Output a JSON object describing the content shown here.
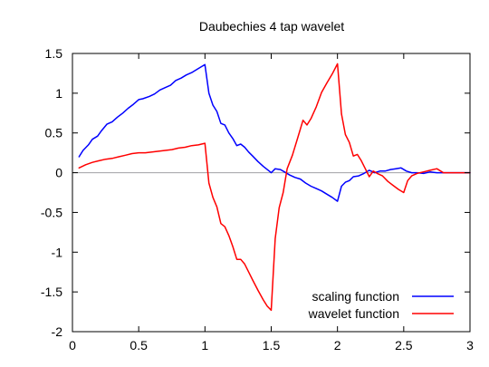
{
  "chart_data": {
    "type": "line",
    "title": "Daubechies 4 tap wavelet",
    "xlabel": "",
    "ylabel": "",
    "xlim": [
      0,
      3
    ],
    "ylim": [
      -2,
      1.5
    ],
    "xticks": [
      0,
      0.5,
      1,
      1.5,
      2,
      2.5,
      3
    ],
    "xtick_labels": [
      "0",
      "0.5",
      "1",
      "1.5",
      "2",
      "2.5",
      "3"
    ],
    "yticks": [
      -2,
      -1.5,
      -1,
      -0.5,
      0,
      0.5,
      1,
      1.5
    ],
    "ytick_labels": [
      "-2",
      "-1.5",
      "-1",
      "-0.5",
      "0",
      "0.5",
      "1",
      "1.5"
    ],
    "zero_line": true,
    "grid": false,
    "legend_position": "bottom-right",
    "series": [
      {
        "name": "scaling function",
        "color": "#0000ff",
        "points": [
          [
            0.05,
            0.2
          ],
          [
            0.08,
            0.28
          ],
          [
            0.12,
            0.35
          ],
          [
            0.15,
            0.42
          ],
          [
            0.19,
            0.46
          ],
          [
            0.22,
            0.53
          ],
          [
            0.26,
            0.61
          ],
          [
            0.3,
            0.64
          ],
          [
            0.34,
            0.7
          ],
          [
            0.38,
            0.75
          ],
          [
            0.42,
            0.81
          ],
          [
            0.46,
            0.86
          ],
          [
            0.5,
            0.92
          ],
          [
            0.53,
            0.93
          ],
          [
            0.58,
            0.96
          ],
          [
            0.62,
            0.99
          ],
          [
            0.66,
            1.04
          ],
          [
            0.7,
            1.07
          ],
          [
            0.74,
            1.1
          ],
          [
            0.78,
            1.16
          ],
          [
            0.82,
            1.19
          ],
          [
            0.86,
            1.23
          ],
          [
            0.9,
            1.26
          ],
          [
            0.94,
            1.3
          ],
          [
            0.98,
            1.34
          ],
          [
            1.0,
            1.36
          ],
          [
            1.03,
            1.0
          ],
          [
            1.06,
            0.85
          ],
          [
            1.09,
            0.77
          ],
          [
            1.12,
            0.62
          ],
          [
            1.15,
            0.6
          ],
          [
            1.18,
            0.5
          ],
          [
            1.21,
            0.43
          ],
          [
            1.24,
            0.34
          ],
          [
            1.27,
            0.36
          ],
          [
            1.3,
            0.32
          ],
          [
            1.33,
            0.26
          ],
          [
            1.36,
            0.21
          ],
          [
            1.4,
            0.14
          ],
          [
            1.44,
            0.08
          ],
          [
            1.47,
            0.04
          ],
          [
            1.5,
            0.0
          ],
          [
            1.53,
            0.05
          ],
          [
            1.57,
            0.04
          ],
          [
            1.6,
            0.01
          ],
          [
            1.64,
            -0.03
          ],
          [
            1.68,
            -0.06
          ],
          [
            1.72,
            -0.08
          ],
          [
            1.76,
            -0.13
          ],
          [
            1.8,
            -0.17
          ],
          [
            1.84,
            -0.2
          ],
          [
            1.88,
            -0.23
          ],
          [
            1.92,
            -0.27
          ],
          [
            1.96,
            -0.31
          ],
          [
            2.0,
            -0.36
          ],
          [
            2.03,
            -0.17
          ],
          [
            2.06,
            -0.12
          ],
          [
            2.09,
            -0.1
          ],
          [
            2.12,
            -0.05
          ],
          [
            2.16,
            -0.04
          ],
          [
            2.2,
            -0.01
          ],
          [
            2.24,
            0.03
          ],
          [
            2.28,
            0.0
          ],
          [
            2.32,
            0.02
          ],
          [
            2.36,
            0.02
          ],
          [
            2.4,
            0.04
          ],
          [
            2.44,
            0.05
          ],
          [
            2.48,
            0.06
          ],
          [
            2.52,
            0.02
          ],
          [
            2.56,
            0.0
          ],
          [
            2.6,
            0.0
          ],
          [
            2.65,
            -0.01
          ],
          [
            2.7,
            0.01
          ],
          [
            2.75,
            0.0
          ],
          [
            2.8,
            0.0
          ],
          [
            2.9,
            0.0
          ],
          [
            3.0,
            0.0
          ]
        ]
      },
      {
        "name": "wavelet function",
        "color": "#ff0000",
        "points": [
          [
            0.05,
            0.06
          ],
          [
            0.1,
            0.1
          ],
          [
            0.15,
            0.13
          ],
          [
            0.2,
            0.15
          ],
          [
            0.25,
            0.17
          ],
          [
            0.3,
            0.18
          ],
          [
            0.35,
            0.2
          ],
          [
            0.4,
            0.22
          ],
          [
            0.45,
            0.24
          ],
          [
            0.5,
            0.25
          ],
          [
            0.55,
            0.25
          ],
          [
            0.6,
            0.26
          ],
          [
            0.65,
            0.27
          ],
          [
            0.7,
            0.28
          ],
          [
            0.75,
            0.29
          ],
          [
            0.8,
            0.31
          ],
          [
            0.85,
            0.32
          ],
          [
            0.9,
            0.34
          ],
          [
            0.95,
            0.35
          ],
          [
            1.0,
            0.37
          ],
          [
            1.03,
            -0.13
          ],
          [
            1.06,
            -0.31
          ],
          [
            1.09,
            -0.43
          ],
          [
            1.12,
            -0.64
          ],
          [
            1.15,
            -0.68
          ],
          [
            1.18,
            -0.79
          ],
          [
            1.21,
            -0.93
          ],
          [
            1.24,
            -1.09
          ],
          [
            1.27,
            -1.09
          ],
          [
            1.3,
            -1.15
          ],
          [
            1.33,
            -1.25
          ],
          [
            1.36,
            -1.35
          ],
          [
            1.4,
            -1.48
          ],
          [
            1.44,
            -1.6
          ],
          [
            1.47,
            -1.68
          ],
          [
            1.5,
            -1.73
          ],
          [
            1.53,
            -0.83
          ],
          [
            1.56,
            -0.44
          ],
          [
            1.59,
            -0.25
          ],
          [
            1.62,
            0.05
          ],
          [
            1.66,
            0.22
          ],
          [
            1.7,
            0.44
          ],
          [
            1.74,
            0.66
          ],
          [
            1.77,
            0.6
          ],
          [
            1.8,
            0.68
          ],
          [
            1.84,
            0.83
          ],
          [
            1.88,
            1.01
          ],
          [
            1.92,
            1.13
          ],
          [
            1.96,
            1.24
          ],
          [
            2.0,
            1.37
          ],
          [
            2.03,
            0.74
          ],
          [
            2.06,
            0.48
          ],
          [
            2.09,
            0.38
          ],
          [
            2.12,
            0.21
          ],
          [
            2.15,
            0.23
          ],
          [
            2.18,
            0.15
          ],
          [
            2.21,
            0.05
          ],
          [
            2.24,
            -0.05
          ],
          [
            2.27,
            0.02
          ],
          [
            2.3,
            -0.01
          ],
          [
            2.34,
            -0.04
          ],
          [
            2.38,
            -0.11
          ],
          [
            2.42,
            -0.16
          ],
          [
            2.46,
            -0.21
          ],
          [
            2.5,
            -0.25
          ],
          [
            2.53,
            -0.1
          ],
          [
            2.56,
            -0.04
          ],
          [
            2.6,
            -0.01
          ],
          [
            2.65,
            0.01
          ],
          [
            2.7,
            0.03
          ],
          [
            2.75,
            0.05
          ],
          [
            2.8,
            0.0
          ],
          [
            2.9,
            0.0
          ],
          [
            3.0,
            0.0
          ]
        ]
      }
    ]
  }
}
